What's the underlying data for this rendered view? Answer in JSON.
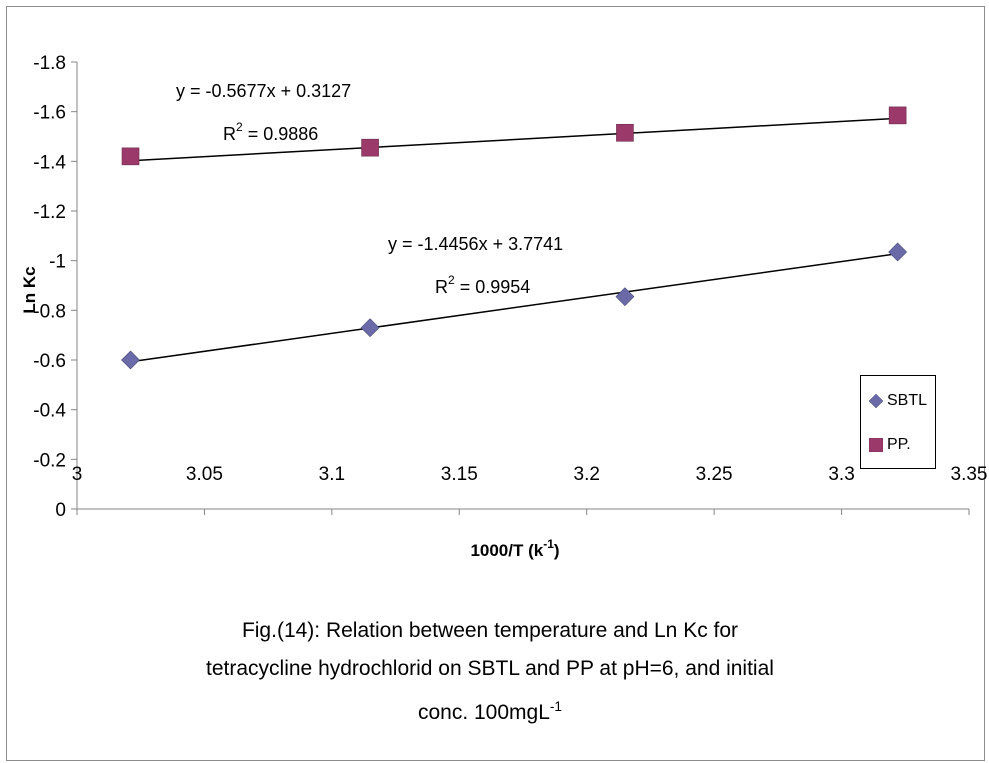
{
  "chart_data": {
    "type": "scatter",
    "xlabel_main": "1000/T (k",
    "xlabel_sup": "-1",
    "xlabel_tail": ")",
    "ylabel": "Ln Kc",
    "xlim": [
      3.0,
      3.35
    ],
    "ylim": [
      0,
      -1.8
    ],
    "x_ticks": [
      "3",
      "3.05",
      "3.1",
      "3.15",
      "3.2",
      "3.25",
      "3.3",
      "3.35"
    ],
    "y_ticks": [
      "0",
      "-0.2",
      "-0.4",
      "-0.6",
      "-0.8",
      "-1",
      "-1.2",
      "-1.4",
      "-1.6",
      "-1.8"
    ],
    "grid": false,
    "legend_position": "right",
    "series": [
      {
        "name": "SBTL",
        "marker": "diamond",
        "color": "#6a6aa8",
        "x": [
          3.021,
          3.115,
          3.215,
          3.322
        ],
        "y": [
          -0.6,
          -0.73,
          -0.855,
          -1.035
        ],
        "trendline": {
          "slope": -1.4456,
          "intercept": 3.7741
        },
        "equation": "y = -1.4456x + 3.7741",
        "r2_label": "R",
        "r2_sup": "2",
        "r2_value": " = 0.9954"
      },
      {
        "name": "PP.",
        "marker": "square",
        "color": "#9b3a6a",
        "x": [
          3.021,
          3.115,
          3.215,
          3.322
        ],
        "y": [
          -1.42,
          -1.455,
          -1.515,
          -1.585
        ],
        "trendline": {
          "slope": -0.5677,
          "intercept": 0.3127
        },
        "equation": "y = -0.5677x + 0.3127",
        "r2_label": "R",
        "r2_sup": "2",
        "r2_value": " = 0.9886"
      }
    ]
  },
  "caption": {
    "line1": "Fig.(14): Relation between temperature and Ln Kc for",
    "line2": "tetracycline hydrochlorid  on SBTL and PP at pH=6, and initial",
    "line3_main": "conc. 100mgL",
    "line3_sup": "-1"
  }
}
